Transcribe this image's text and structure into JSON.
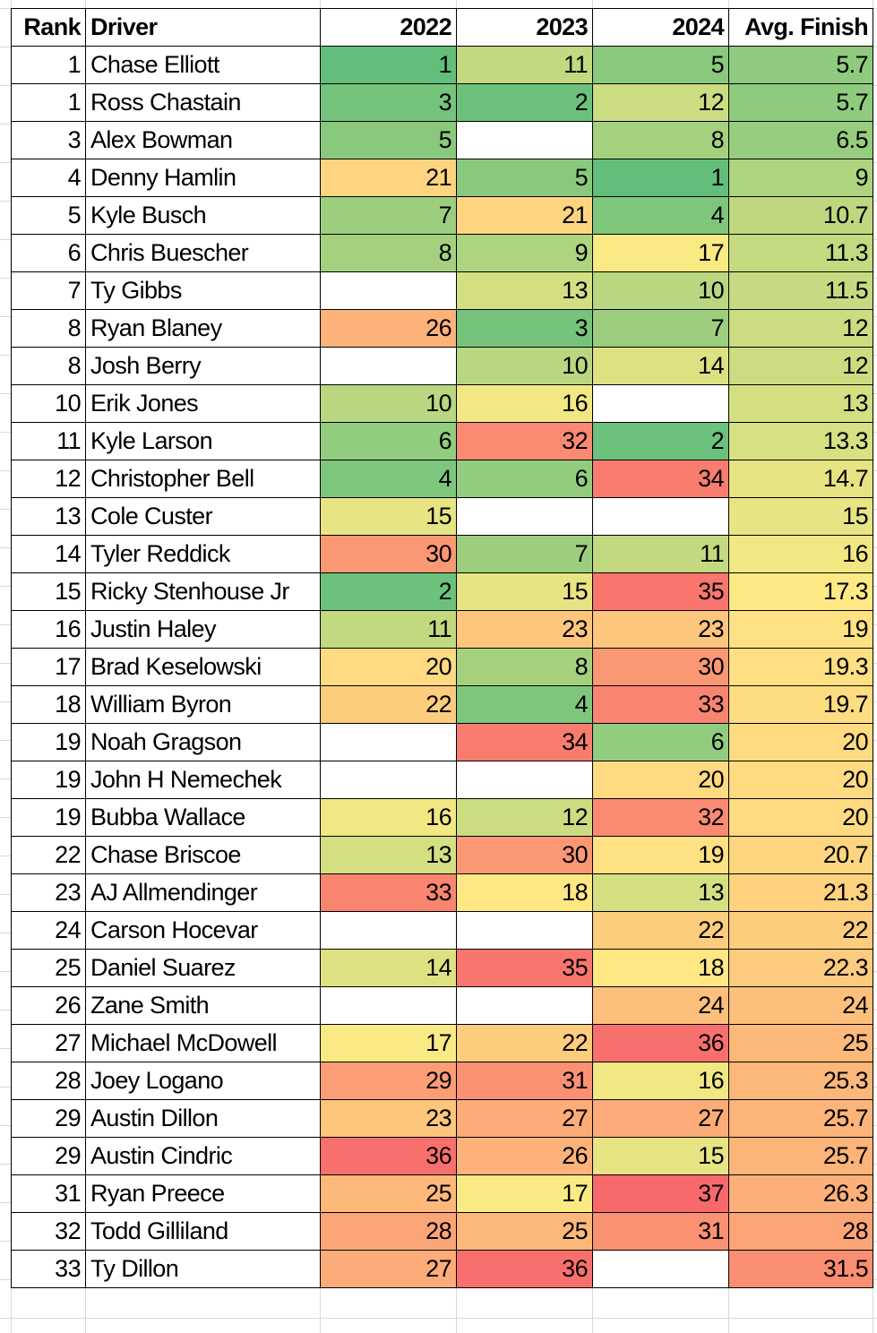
{
  "sheet": {
    "headers": {
      "rank": "Rank",
      "driver": "Driver",
      "y2022": "2022",
      "y2023": "2023",
      "y2024": "2024",
      "avg": "Avg. Finish"
    },
    "color_scale": {
      "min_color": "#63BE7B",
      "mid_color": "#FFEB84",
      "max_color": "#F8696B",
      "min_value": 1,
      "max_value": 37
    },
    "rows": [
      {
        "rank": "1",
        "driver": "Chase Elliott",
        "y2022": "1",
        "c2022": "#63BE7B",
        "y2023": "11",
        "c2023": "#C2D980",
        "y2024": "5",
        "c2024": "#89C97D",
        "avg": "5.7",
        "cavg": "#8FCB7E"
      },
      {
        "rank": "1",
        "driver": "Ross Chastain",
        "y2022": "3",
        "c2022": "#76C37C",
        "y2023": "2",
        "c2023": "#6CC17C",
        "y2024": "12",
        "c2024": "#CBDC81",
        "avg": "5.7",
        "cavg": "#8FCB7E"
      },
      {
        "rank": "3",
        "driver": "Alex Bowman",
        "y2022": "5",
        "c2022": "#89C97D",
        "y2023": "",
        "c2023": "#FFFFFF",
        "y2024": "8",
        "c2024": "#A5D17F",
        "avg": "6.5",
        "cavg": "#97CD7E"
      },
      {
        "rank": "4",
        "driver": "Denny Hamlin",
        "y2022": "21",
        "c2022": "#FED480",
        "y2023": "5",
        "c2023": "#89C97D",
        "y2024": "1",
        "c2024": "#63BE7B",
        "avg": "9",
        "cavg": "#AFD47F"
      },
      {
        "rank": "5",
        "driver": "Kyle Busch",
        "y2022": "7",
        "c2022": "#9CCE7E",
        "y2023": "21",
        "c2023": "#FED480",
        "y2024": "4",
        "c2024": "#7FC67D",
        "avg": "10.7",
        "cavg": "#BFD880"
      },
      {
        "rank": "6",
        "driver": "Chris Buescher",
        "y2022": "8",
        "c2022": "#A5D17F",
        "y2023": "9",
        "c2023": "#AFD47F",
        "y2024": "17",
        "c2024": "#FAEA84",
        "avg": "11.3",
        "cavg": "#C4DA81"
      },
      {
        "rank": "7",
        "driver": "Ty Gibbs",
        "y2022": "",
        "c2022": "#FFFFFF",
        "y2023": "13",
        "c2023": "#D4DF82",
        "y2024": "10",
        "c2024": "#B8D780",
        "avg": "11.5",
        "cavg": "#C6DB81"
      },
      {
        "rank": "8",
        "driver": "Ryan Blaney",
        "y2022": "26",
        "c2022": "#FCB279",
        "y2023": "3",
        "c2023": "#76C37C",
        "y2024": "7",
        "c2024": "#9CCE7E",
        "avg": "12",
        "cavg": "#CBDC81"
      },
      {
        "rank": "8",
        "driver": "Josh Berry",
        "y2022": "",
        "c2022": "#FFFFFF",
        "y2023": "10",
        "c2023": "#B8D780",
        "y2024": "14",
        "c2024": "#DEE182",
        "avg": "12",
        "cavg": "#CBDC81"
      },
      {
        "rank": "10",
        "driver": "Erik Jones",
        "y2022": "10",
        "c2022": "#B8D780",
        "y2023": "16",
        "c2023": "#F1E783",
        "y2024": "",
        "c2024": "#FFFFFF",
        "avg": "13",
        "cavg": "#D4DF82"
      },
      {
        "rank": "11",
        "driver": "Kyle Larson",
        "y2022": "6",
        "c2022": "#92CC7E",
        "y2023": "32",
        "c2023": "#FA8A71",
        "y2024": "2",
        "c2024": "#6CC17C",
        "avg": "13.3",
        "cavg": "#D7E082"
      },
      {
        "rank": "12",
        "driver": "Christopher Bell",
        "y2022": "4",
        "c2022": "#7FC67D",
        "y2023": "6",
        "c2023": "#92CC7E",
        "y2024": "34",
        "c2024": "#F97D6F",
        "avg": "14.7",
        "cavg": "#E5E382"
      },
      {
        "rank": "13",
        "driver": "Cole Custer",
        "y2022": "15",
        "c2022": "#E7E483",
        "y2023": "",
        "c2023": "#FFFFFF",
        "y2024": "",
        "c2024": "#FFFFFF",
        "avg": "15",
        "cavg": "#E7E483"
      },
      {
        "rank": "14",
        "driver": "Tyler Reddick",
        "y2022": "30",
        "c2022": "#FB9874",
        "y2023": "7",
        "c2023": "#9CCE7E",
        "y2024": "11",
        "c2024": "#C2D980",
        "avg": "16",
        "cavg": "#F1E783"
      },
      {
        "rank": "15",
        "driver": "Ricky Stenhouse Jr",
        "y2022": "2",
        "c2022": "#6CC17C",
        "y2023": "15",
        "c2023": "#E7E483",
        "y2024": "35",
        "c2024": "#F9766E",
        "avg": "17.3",
        "cavg": "#FDEA84"
      },
      {
        "rank": "16",
        "driver": "Justin Haley",
        "y2022": "11",
        "c2022": "#C2D980",
        "y2023": "23",
        "c2023": "#FDC67D",
        "y2024": "23",
        "c2024": "#FDC67D",
        "avg": "19",
        "cavg": "#FEE182"
      },
      {
        "rank": "17",
        "driver": "Brad Keselowski",
        "y2022": "20",
        "c2022": "#FEDA81",
        "y2023": "8",
        "c2023": "#A5D17F",
        "y2024": "30",
        "c2024": "#FB9874",
        "avg": "19.3",
        "cavg": "#FEDF82"
      },
      {
        "rank": "18",
        "driver": "William Byron",
        "y2022": "22",
        "c2022": "#FDCD7E",
        "y2023": "4",
        "c2023": "#7FC67D",
        "y2024": "33",
        "c2024": "#F98470",
        "avg": "19.7",
        "cavg": "#FEDC81"
      },
      {
        "rank": "19",
        "driver": "Noah Gragson",
        "y2022": "",
        "c2022": "#FFFFFF",
        "y2023": "34",
        "c2023": "#F97D6F",
        "y2024": "6",
        "c2024": "#92CC7E",
        "avg": "20",
        "cavg": "#FEDA81"
      },
      {
        "rank": "19",
        "driver": "John H Nemechek",
        "y2022": "",
        "c2022": "#FFFFFF",
        "y2023": "",
        "c2023": "#FFFFFF",
        "y2024": "20",
        "c2024": "#FEDA81",
        "avg": "20",
        "cavg": "#FEDA81"
      },
      {
        "rank": "19",
        "driver": "Bubba Wallace",
        "y2022": "16",
        "c2022": "#F1E783",
        "y2023": "12",
        "c2023": "#CBDC81",
        "y2024": "32",
        "c2024": "#FA8A71",
        "avg": "20",
        "cavg": "#FEDA81"
      },
      {
        "rank": "22",
        "driver": "Chase Briscoe",
        "y2022": "13",
        "c2022": "#D4DF82",
        "y2023": "30",
        "c2023": "#FB9874",
        "y2024": "19",
        "c2024": "#FEE182",
        "avg": "20.7",
        "cavg": "#FED680"
      },
      {
        "rank": "23",
        "driver": "AJ Allmendinger",
        "y2022": "33",
        "c2022": "#F98470",
        "y2023": "18",
        "c2023": "#FFE883",
        "y2024": "13",
        "c2024": "#D4DF82",
        "avg": "21.3",
        "cavg": "#FED27F"
      },
      {
        "rank": "24",
        "driver": "Carson Hocevar",
        "y2022": "",
        "c2022": "#FFFFFF",
        "y2023": "",
        "c2023": "#FFFFFF",
        "y2024": "22",
        "c2024": "#FDCD7E",
        "avg": "22",
        "cavg": "#FDCD7E"
      },
      {
        "rank": "25",
        "driver": "Daniel Suarez",
        "y2022": "14",
        "c2022": "#DEE182",
        "y2023": "35",
        "c2023": "#F9766E",
        "y2024": "18",
        "c2024": "#FFE883",
        "avg": "22.3",
        "cavg": "#FDCB7E"
      },
      {
        "rank": "26",
        "driver": "Zane Smith",
        "y2022": "",
        "c2022": "#FFFFFF",
        "y2023": "",
        "c2023": "#FFFFFF",
        "y2024": "24",
        "c2024": "#FDC07C",
        "avg": "24",
        "cavg": "#FDC07C"
      },
      {
        "rank": "27",
        "driver": "Michael McDowell",
        "y2022": "17",
        "c2022": "#FAEA84",
        "y2023": "22",
        "c2023": "#FDCD7E",
        "y2024": "36",
        "c2024": "#F8706D",
        "avg": "25",
        "cavg": "#FCB97A"
      },
      {
        "rank": "28",
        "driver": "Joey Logano",
        "y2022": "29",
        "c2022": "#FB9E75",
        "y2023": "31",
        "c2023": "#FA9173",
        "y2024": "16",
        "c2024": "#F1E783",
        "avg": "25.3",
        "cavg": "#FCB77A"
      },
      {
        "rank": "29",
        "driver": "Austin Dillon",
        "y2022": "23",
        "c2022": "#FDC67D",
        "y2023": "27",
        "c2023": "#FCAC78",
        "y2024": "27",
        "c2024": "#FCAC78",
        "avg": "25.7",
        "cavg": "#FCB479"
      },
      {
        "rank": "29",
        "driver": "Austin Cindric",
        "y2022": "36",
        "c2022": "#F8706D",
        "y2023": "26",
        "c2023": "#FCB279",
        "y2024": "15",
        "c2024": "#E7E483",
        "avg": "25.7",
        "cavg": "#FCB479"
      },
      {
        "rank": "31",
        "driver": "Ryan Preece",
        "y2022": "25",
        "c2022": "#FCB97A",
        "y2023": "17",
        "c2023": "#FAEA84",
        "y2024": "37",
        "c2024": "#F8696B",
        "avg": "26.3",
        "cavg": "#FCB079"
      },
      {
        "rank": "32",
        "driver": "Todd Gilliland",
        "y2022": "28",
        "c2022": "#FBA577",
        "y2023": "25",
        "c2023": "#FCB97A",
        "y2024": "31",
        "c2024": "#FA9173",
        "avg": "28",
        "cavg": "#FBA577"
      },
      {
        "rank": "33",
        "driver": "Ty Dillon",
        "y2022": "27",
        "c2022": "#FCAC78",
        "y2023": "36",
        "c2023": "#F8706D",
        "y2024": "",
        "c2024": "#FFFFFF",
        "avg": "31.5",
        "cavg": "#FA8E72"
      }
    ]
  }
}
